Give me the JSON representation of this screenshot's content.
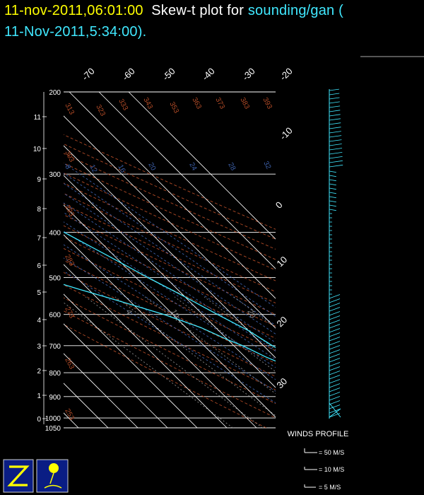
{
  "title": {
    "time": "11-nov-2011,06:01:00",
    "middle": "Skew-t plot for",
    "station": "sounding/gan (",
    "line2": "11-Nov-2011,5:34:00)."
  },
  "colors": {
    "time": "#ffff00",
    "title": "#ffffff",
    "station": "#40e8ff",
    "isobars": "#ffffff",
    "isotherms": "#ffffff",
    "dry_adiabats": "#b04a26",
    "moist_adiabats": "#3c5fa8",
    "mixing_ratio": "#8c8c8c",
    "temperature": "#40e8ff",
    "dewpoint": "#40e8ff",
    "winds": "#40e8ff"
  },
  "chart_data": {
    "type": "line",
    "pressure_labels": [
      "200",
      "300",
      "400",
      "500",
      "600",
      "700",
      "800",
      "900",
      "1000",
      "1050"
    ],
    "height_labels": [
      "11",
      "10",
      "9",
      "8",
      "7",
      "6",
      "5",
      "4",
      "3",
      "2",
      "1",
      "0"
    ],
    "isotherm_labels": [
      "-70",
      "-60",
      "-50",
      "-40",
      "-30",
      "-20",
      "-10",
      "0",
      "10",
      "20",
      "30"
    ],
    "theta_labels": [
      "313",
      "323",
      "333",
      "343",
      "353",
      "363",
      "373",
      "383",
      "393",
      "303",
      "293",
      "283",
      "273",
      "263",
      "253"
    ],
    "moist_labels": [
      "8",
      "12",
      "16",
      "20",
      "24",
      "28",
      "32"
    ],
    "mixing_labels": [
      "4",
      "10",
      "20"
    ],
    "series": [
      {
        "name": "temperature",
        "points": [
          [
            200,
            -63
          ],
          [
            250,
            -55
          ],
          [
            300,
            -45
          ],
          [
            350,
            -36
          ],
          [
            400,
            -29
          ],
          [
            450,
            -22
          ],
          [
            500,
            -16
          ],
          [
            550,
            -10
          ],
          [
            600,
            -5
          ],
          [
            650,
            0
          ],
          [
            700,
            3
          ],
          [
            750,
            7
          ],
          [
            800,
            10
          ],
          [
            850,
            14
          ],
          [
            900,
            18
          ],
          [
            950,
            22
          ],
          [
            990,
            25
          ],
          [
            1005,
            26
          ]
        ]
      },
      {
        "name": "dewpoint",
        "points": [
          [
            200,
            -70
          ],
          [
            220,
            -70
          ],
          [
            240,
            -68
          ],
          [
            260,
            -65
          ],
          [
            280,
            -66
          ],
          [
            300,
            -61
          ],
          [
            320,
            -58
          ],
          [
            340,
            -58
          ],
          [
            360,
            -55
          ],
          [
            380,
            -57
          ],
          [
            400,
            -55
          ],
          [
            420,
            -57
          ],
          [
            440,
            -58
          ],
          [
            460,
            -64
          ],
          [
            470,
            -61
          ],
          [
            480,
            -66
          ],
          [
            490,
            -61
          ],
          [
            500,
            -54
          ],
          [
            510,
            -49
          ],
          [
            530,
            -43
          ],
          [
            560,
            -34
          ],
          [
            600,
            -23
          ],
          [
            640,
            -15
          ],
          [
            680,
            -10
          ],
          [
            700,
            -7
          ],
          [
            740,
            -3
          ],
          [
            780,
            2
          ],
          [
            820,
            6
          ],
          [
            860,
            9
          ],
          [
            900,
            13
          ],
          [
            950,
            19
          ],
          [
            990,
            21
          ],
          [
            1005,
            24
          ]
        ]
      }
    ],
    "xlim": [
      -95,
      40
    ],
    "ylim": [
      1050,
      200
    ],
    "winds_label": "WINDS PROFILE",
    "wind_legend": [
      "= 50 M/S",
      "= 10 M/S",
      "= 5 M/S"
    ]
  }
}
